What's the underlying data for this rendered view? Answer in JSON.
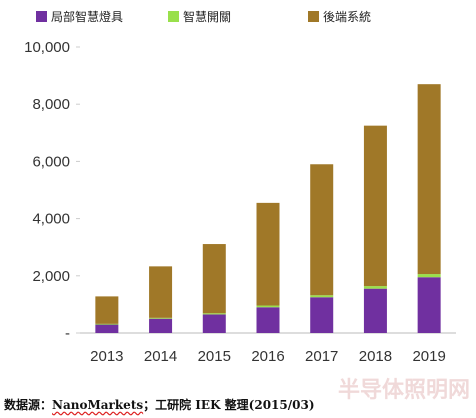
{
  "chart_data": {
    "type": "bar",
    "stacked": true,
    "categories": [
      "2013",
      "2014",
      "2015",
      "2016",
      "2017",
      "2018",
      "2019"
    ],
    "series": [
      {
        "name": "局部智慧燈具",
        "color": "#7030a0",
        "values": [
          300,
          500,
          650,
          900,
          1250,
          1550,
          1950
        ]
      },
      {
        "name": "智慧開關",
        "color": "#99e04c",
        "values": [
          20,
          30,
          40,
          60,
          70,
          90,
          110
        ]
      },
      {
        "name": "後端系統",
        "color": "#a07828",
        "values": [
          960,
          1800,
          2420,
          3590,
          4580,
          5610,
          6640
        ]
      }
    ],
    "ylim": [
      0,
      10000
    ],
    "yticks": [
      0,
      2000,
      4000,
      6000,
      8000,
      10000
    ],
    "ytick_labels": [
      "-",
      "2,000",
      "4,000",
      "6,000",
      "8,000",
      "10,000"
    ],
    "legend_position": "top",
    "grid": false
  },
  "source_label": "数据源：",
  "source_name": "NanoMarkets",
  "source_rest": "；工研院 IEK 整理(2015/03)",
  "watermark": "半导体照明网"
}
